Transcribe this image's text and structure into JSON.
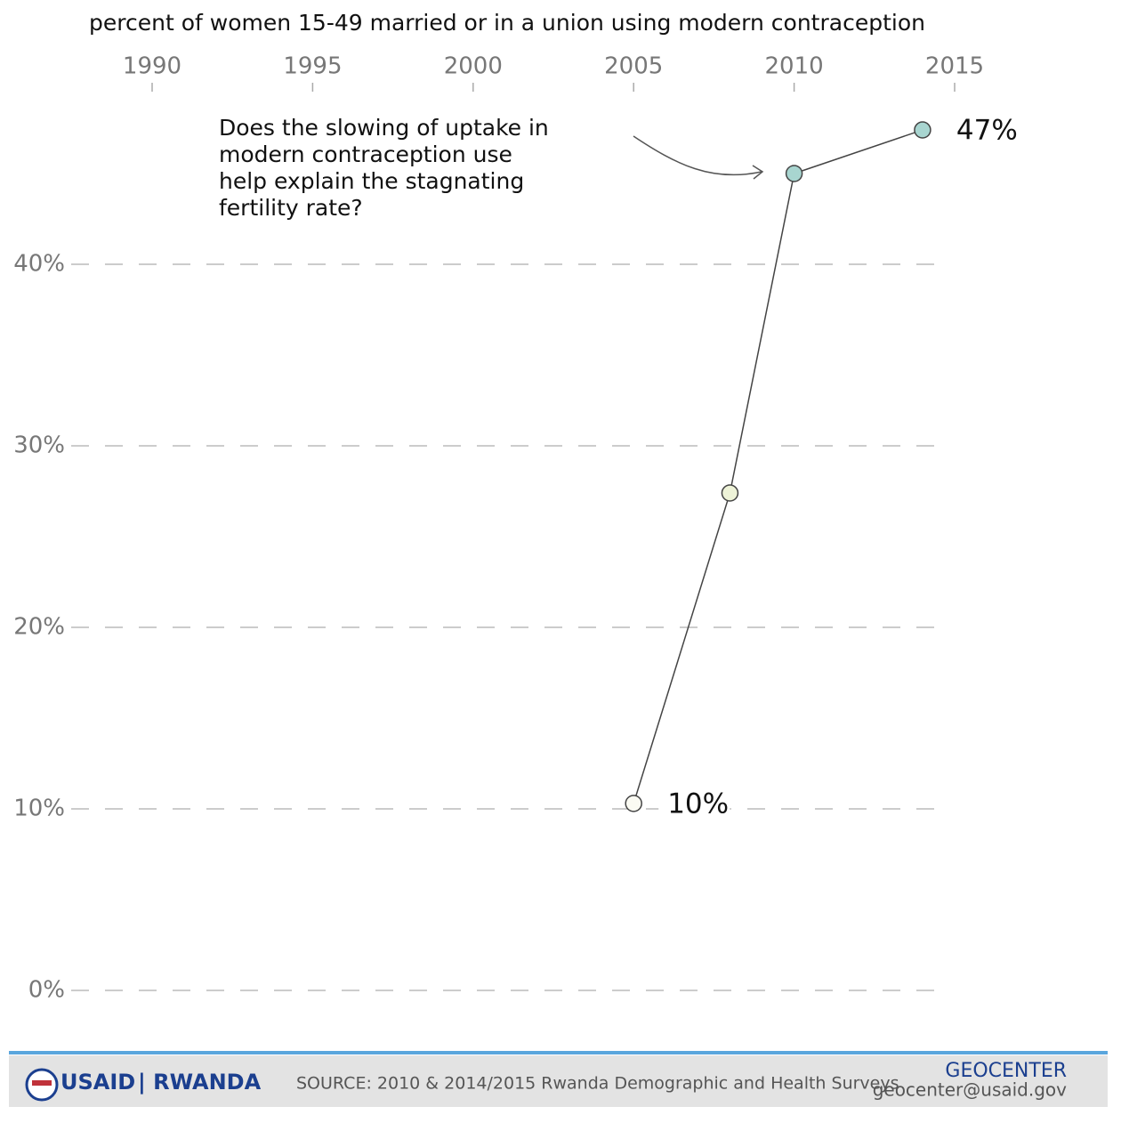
{
  "chart_data": {
    "type": "line",
    "title": "percent of women 15-49 married or in a union using modern contraception",
    "annotation": [
      "Does the slowing of uptake in",
      "modern contraception use",
      "help explain the stagnating",
      "fertility rate?"
    ],
    "x": [
      2005,
      2008,
      2010,
      2014
    ],
    "series": [
      {
        "color": "#444444",
        "point_colors": [
          "#fbfbf3",
          "#eef3d8",
          "#a8d5d0",
          "#a8d5d0"
        ],
        "values": [
          10.3,
          27.4,
          45,
          47.4
        ],
        "value_labels": [
          "10%",
          null,
          null,
          "47%"
        ]
      }
    ],
    "xlim": [
      1990,
      2015
    ],
    "xticks": [
      1990,
      1995,
      2000,
      2005,
      2010,
      2015
    ],
    "ylim": [
      0,
      40
    ],
    "yticks": [
      {
        "value": 0,
        "label": "0%"
      },
      {
        "value": 10,
        "label": "10%"
      },
      {
        "value": 20,
        "label": "20%"
      },
      {
        "value": 30,
        "label": "30%"
      },
      {
        "value": 40,
        "label": "40%"
      }
    ],
    "grid": true
  },
  "footer": {
    "brand": "USAID",
    "country": "| RWANDA",
    "source": "SOURCE: 2010 & 2014/2015 Rwanda Demographic and Health Surveys",
    "org": "GEOCENTER",
    "email": "geocenter@usaid.gov"
  }
}
